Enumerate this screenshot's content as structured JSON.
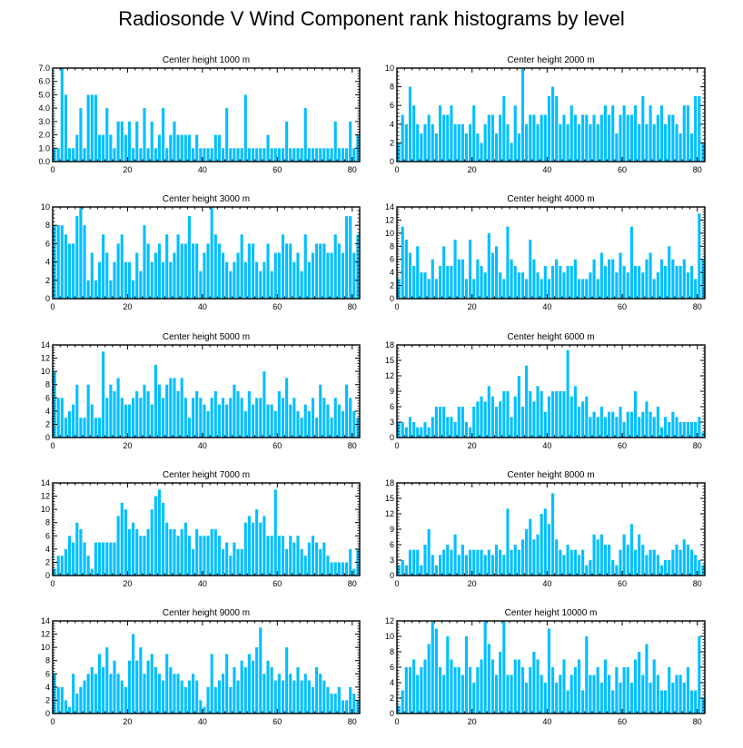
{
  "title": "Radiosonde V Wind Component rank histograms by level",
  "colors": {
    "bar": "#00bfff",
    "axis": "#000000",
    "background": "#ffffff"
  },
  "chart_data": [
    {
      "type": "bar",
      "title": "Center height 1000 m",
      "xlim": [
        0,
        82
      ],
      "ylim": [
        0,
        7
      ],
      "xticks": [
        0,
        20,
        40,
        60,
        80
      ],
      "yticks": [
        0,
        1,
        2,
        3,
        4,
        5,
        6,
        7
      ],
      "ytick_labels": [
        "0.0",
        "1.0",
        "2.0",
        "3.0",
        "4.0",
        "5.0",
        "6.0",
        "7.0"
      ],
      "values": [
        1,
        1,
        7,
        5,
        1,
        1,
        2,
        4,
        1,
        5,
        5,
        5,
        2,
        2,
        4,
        2,
        1,
        3,
        3,
        2,
        3,
        1,
        3,
        1,
        4,
        1,
        3,
        1,
        2,
        4,
        1,
        2,
        3,
        2,
        2,
        2,
        2,
        1,
        2,
        1,
        1,
        1,
        1,
        2,
        2,
        1,
        4,
        1,
        1,
        1,
        1,
        5,
        1,
        1,
        1,
        1,
        1,
        2,
        1,
        1,
        1,
        1,
        3,
        1,
        1,
        1,
        1,
        4,
        1,
        1,
        1,
        1,
        1,
        1,
        1,
        3,
        1,
        1,
        1,
        3,
        1,
        2
      ]
    },
    {
      "type": "bar",
      "title": "Center height 2000 m",
      "xlim": [
        0,
        82
      ],
      "ylim": [
        0,
        10
      ],
      "xticks": [
        0,
        20,
        40,
        60,
        80
      ],
      "yticks": [
        0,
        2,
        4,
        6,
        8,
        10
      ],
      "ytick_labels": [
        "0",
        "2",
        "4",
        "6",
        "8",
        "10"
      ],
      "values": [
        2,
        5,
        4,
        8,
        6,
        4,
        3,
        4,
        5,
        4,
        3,
        6,
        5,
        5,
        6,
        4,
        4,
        4,
        3,
        4,
        6,
        3,
        2,
        4,
        5,
        5,
        3,
        5,
        7,
        4,
        2,
        6,
        3,
        10,
        4,
        5,
        5,
        4,
        5,
        5,
        7,
        8,
        7,
        4,
        5,
        4,
        6,
        5,
        4,
        5,
        5,
        4,
        5,
        4,
        5,
        6,
        5,
        6,
        3,
        5,
        6,
        5,
        5,
        6,
        4,
        7,
        4,
        6,
        4,
        5,
        6,
        4,
        5,
        5,
        4,
        3,
        6,
        6,
        3,
        7,
        7,
        2
      ]
    },
    {
      "type": "bar",
      "title": "Center height 3000 m",
      "xlim": [
        0,
        82
      ],
      "ylim": [
        0,
        10
      ],
      "xticks": [
        0,
        20,
        40,
        60,
        80
      ],
      "yticks": [
        0,
        2,
        4,
        6,
        8,
        10
      ],
      "ytick_labels": [
        "0",
        "2",
        "4",
        "6",
        "8",
        "10"
      ],
      "values": [
        8,
        8,
        8,
        7,
        6,
        6,
        9,
        10,
        8,
        2,
        5,
        2,
        4,
        7,
        5,
        2,
        4,
        6,
        7,
        4,
        4,
        2,
        5,
        3,
        8,
        6,
        4,
        5,
        6,
        4,
        7,
        4,
        5,
        7,
        6,
        6,
        9,
        6,
        6,
        3,
        5,
        6,
        10,
        7,
        6,
        5,
        4,
        3,
        4,
        5,
        7,
        4,
        6,
        6,
        4,
        3,
        4,
        6,
        3,
        5,
        5,
        7,
        6,
        6,
        4,
        5,
        3,
        7,
        4,
        5,
        6,
        6,
        6,
        5,
        5,
        7,
        6,
        5,
        9,
        9,
        5,
        7
      ]
    },
    {
      "type": "bar",
      "title": "Center height 4000 m",
      "xlim": [
        0,
        82
      ],
      "ylim": [
        0,
        14
      ],
      "xticks": [
        0,
        20,
        40,
        60,
        80
      ],
      "yticks": [
        0,
        2,
        4,
        6,
        8,
        10,
        12,
        14
      ],
      "ytick_labels": [
        "0",
        "2",
        "4",
        "6",
        "8",
        "10",
        "12",
        "14"
      ],
      "values": [
        3,
        11,
        9,
        7,
        5,
        8,
        4,
        4,
        3,
        6,
        3,
        5,
        8,
        5,
        5,
        9,
        6,
        6,
        3,
        9,
        3,
        6,
        5,
        4,
        10,
        7,
        8,
        4,
        3,
        11,
        6,
        5,
        4,
        4,
        3,
        9,
        6,
        4,
        3,
        5,
        3,
        5,
        6,
        5,
        4,
        5,
        5,
        6,
        3,
        3,
        3,
        4,
        6,
        3,
        7,
        5,
        6,
        6,
        4,
        7,
        5,
        4,
        11,
        5,
        5,
        4,
        6,
        7,
        3,
        4,
        6,
        5,
        8,
        6,
        5,
        5,
        6,
        4,
        5,
        3,
        13,
        6
      ]
    },
    {
      "type": "bar",
      "title": "Center height 5000 m",
      "xlim": [
        0,
        82
      ],
      "ylim": [
        0,
        14
      ],
      "xticks": [
        0,
        20,
        40,
        60,
        80
      ],
      "yticks": [
        0,
        2,
        4,
        6,
        8,
        10,
        12,
        14
      ],
      "ytick_labels": [
        "0",
        "2",
        "4",
        "6",
        "8",
        "10",
        "12",
        "14"
      ],
      "values": [
        10,
        6,
        6,
        3,
        4,
        5,
        8,
        3,
        3,
        8,
        5,
        3,
        3,
        13,
        6,
        8,
        7,
        9,
        6,
        5,
        5,
        6,
        7,
        6,
        8,
        7,
        5,
        11,
        8,
        6,
        8,
        9,
        9,
        7,
        9,
        6,
        3,
        6,
        7,
        6,
        5,
        4,
        6,
        7,
        5,
        6,
        5,
        6,
        8,
        7,
        6,
        4,
        7,
        5,
        6,
        6,
        10,
        5,
        5,
        4,
        7,
        6,
        9,
        5,
        6,
        4,
        3,
        5,
        4,
        6,
        3,
        8,
        6,
        5,
        3,
        6,
        5,
        4,
        8,
        6,
        4,
        3
      ]
    },
    {
      "type": "bar",
      "title": "Center height 6000 m",
      "xlim": [
        0,
        82
      ],
      "ylim": [
        0,
        18
      ],
      "xticks": [
        0,
        20,
        40,
        60,
        80
      ],
      "yticks": [
        0,
        3,
        6,
        9,
        12,
        15,
        18
      ],
      "ytick_labels": [
        "0",
        "3",
        "6",
        "9",
        "12",
        "15",
        "18"
      ],
      "values": [
        3,
        3,
        2,
        4,
        3,
        2,
        2,
        3,
        2,
        4,
        6,
        6,
        6,
        4,
        4,
        3,
        6,
        6,
        3,
        2,
        6,
        7,
        8,
        7,
        10,
        8,
        6,
        7,
        9,
        9,
        4,
        8,
        12,
        6,
        14,
        9,
        7,
        10,
        9,
        5,
        8,
        9,
        9,
        9,
        9,
        17,
        8,
        10,
        6,
        7,
        8,
        4,
        5,
        4,
        6,
        4,
        5,
        5,
        4,
        6,
        3,
        5,
        5,
        9,
        4,
        5,
        7,
        5,
        4,
        6,
        2,
        4,
        3,
        5,
        4,
        3,
        3,
        3,
        3,
        3,
        4,
        1
      ]
    },
    {
      "type": "bar",
      "title": "Center height 7000 m",
      "xlim": [
        0,
        82
      ],
      "ylim": [
        0,
        14
      ],
      "xticks": [
        0,
        20,
        40,
        60,
        80
      ],
      "yticks": [
        0,
        2,
        4,
        6,
        8,
        10,
        12,
        14
      ],
      "ytick_labels": [
        "0",
        "2",
        "4",
        "6",
        "8",
        "10",
        "12",
        "14"
      ],
      "values": [
        1,
        3,
        3,
        4,
        6,
        5,
        8,
        7,
        5,
        3,
        1,
        5,
        5,
        5,
        5,
        5,
        5,
        9,
        11,
        10,
        7,
        8,
        7,
        6,
        6,
        7,
        10,
        12,
        13,
        11,
        8,
        7,
        7,
        6,
        7,
        8,
        6,
        4,
        7,
        6,
        6,
        6,
        7,
        7,
        6,
        4,
        5,
        3,
        5,
        4,
        4,
        8,
        9,
        8,
        10,
        8,
        9,
        6,
        6,
        13,
        6,
        6,
        4,
        6,
        5,
        6,
        4,
        3,
        5,
        6,
        5,
        4,
        5,
        3,
        2,
        2,
        2,
        2,
        2,
        4,
        1,
        4
      ]
    },
    {
      "type": "bar",
      "title": "Center height 8000 m",
      "xlim": [
        0,
        82
      ],
      "ylim": [
        0,
        18
      ],
      "xticks": [
        0,
        20,
        40,
        60,
        80
      ],
      "yticks": [
        0,
        3,
        6,
        9,
        12,
        15,
        18
      ],
      "ytick_labels": [
        "0",
        "3",
        "6",
        "9",
        "12",
        "15",
        "18"
      ],
      "values": [
        2,
        3,
        2,
        5,
        5,
        5,
        2,
        6,
        9,
        4,
        2,
        4,
        5,
        6,
        5,
        8,
        4,
        6,
        4,
        5,
        5,
        5,
        5,
        4,
        5,
        4,
        6,
        5,
        4,
        13,
        5,
        6,
        5,
        7,
        9,
        11,
        7,
        8,
        12,
        13,
        10,
        16,
        7,
        5,
        4,
        6,
        5,
        5,
        4,
        5,
        2,
        3,
        8,
        7,
        8,
        6,
        6,
        3,
        2,
        5,
        8,
        6,
        10,
        5,
        8,
        6,
        4,
        5,
        5,
        4,
        2,
        3,
        3,
        5,
        6,
        5,
        7,
        6,
        5,
        4,
        3,
        2
      ]
    },
    {
      "type": "bar",
      "title": "Center height 9000 m",
      "xlim": [
        0,
        82
      ],
      "ylim": [
        0,
        14
      ],
      "xticks": [
        0,
        20,
        40,
        60,
        80
      ],
      "yticks": [
        0,
        2,
        4,
        6,
        8,
        10,
        12,
        14
      ],
      "ytick_labels": [
        "0",
        "2",
        "4",
        "6",
        "8",
        "10",
        "12",
        "14"
      ],
      "values": [
        6,
        4,
        4,
        2,
        1,
        6,
        3,
        4,
        5,
        6,
        7,
        6,
        9,
        7,
        10,
        6,
        8,
        6,
        5,
        4,
        8,
        12,
        8,
        10,
        6,
        8,
        9,
        7,
        6,
        5,
        9,
        7,
        6,
        6,
        5,
        4,
        5,
        6,
        5,
        2,
        1,
        4,
        9,
        4,
        5,
        6,
        9,
        4,
        7,
        5,
        8,
        7,
        9,
        8,
        10,
        13,
        6,
        8,
        7,
        5,
        6,
        5,
        10,
        6,
        5,
        7,
        5,
        6,
        5,
        4,
        7,
        6,
        5,
        4,
        3,
        3,
        4,
        2,
        2,
        4,
        3,
        2
      ]
    },
    {
      "type": "bar",
      "title": "Center height 10000 m",
      "xlim": [
        0,
        82
      ],
      "ylim": [
        0,
        12
      ],
      "xticks": [
        0,
        20,
        40,
        60,
        80
      ],
      "yticks": [
        0,
        2,
        4,
        6,
        8,
        10,
        12
      ],
      "ytick_labels": [
        "0",
        "2",
        "4",
        "6",
        "8",
        "10",
        "12"
      ],
      "values": [
        1,
        3,
        6,
        6,
        7,
        5,
        6,
        7,
        9,
        12,
        11,
        6,
        5,
        10,
        7,
        6,
        6,
        5,
        10,
        6,
        4,
        6,
        7,
        12,
        9,
        7,
        5,
        8,
        12,
        5,
        5,
        7,
        7,
        6,
        4,
        6,
        8,
        7,
        5,
        4,
        11,
        6,
        4,
        5,
        7,
        3,
        5,
        6,
        7,
        3,
        10,
        5,
        5,
        6,
        4,
        7,
        5,
        3,
        6,
        4,
        6,
        6,
        4,
        7,
        8,
        5,
        9,
        4,
        7,
        5,
        3,
        3,
        6,
        4,
        5,
        5,
        4,
        6,
        3,
        3,
        10,
        2
      ]
    }
  ]
}
